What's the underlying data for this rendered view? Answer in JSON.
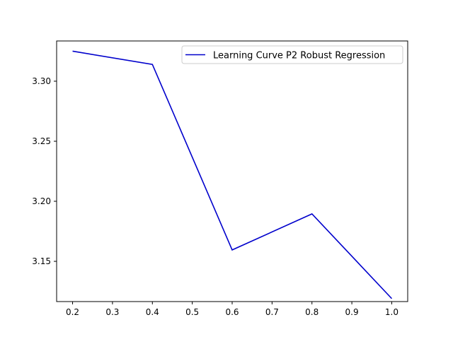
{
  "chart_data": {
    "type": "line",
    "title": "",
    "xlabel": "",
    "ylabel": "",
    "xlim": [
      0.16,
      1.04
    ],
    "ylim": [
      3.1165,
      3.3335
    ],
    "x_ticks": [
      0.2,
      0.3,
      0.4,
      0.5,
      0.6,
      0.7,
      0.8,
      0.9,
      1.0
    ],
    "x_tick_labels": [
      "0.2",
      "0.3",
      "0.4",
      "0.5",
      "0.6",
      "0.7",
      "0.8",
      "0.9",
      "1.0"
    ],
    "y_ticks": [
      3.15,
      3.2,
      3.25,
      3.3
    ],
    "y_tick_labels": [
      "3.15",
      "3.20",
      "3.25",
      "3.30"
    ],
    "grid": false,
    "legend_position": "top-right",
    "series": [
      {
        "name": "Learning Curve P2 Robust Regression",
        "color": "#0000cc",
        "x": [
          0.2,
          0.4,
          0.6,
          0.8,
          1.0
        ],
        "y": [
          3.325,
          3.314,
          3.1595,
          3.1895,
          3.119
        ]
      }
    ]
  }
}
